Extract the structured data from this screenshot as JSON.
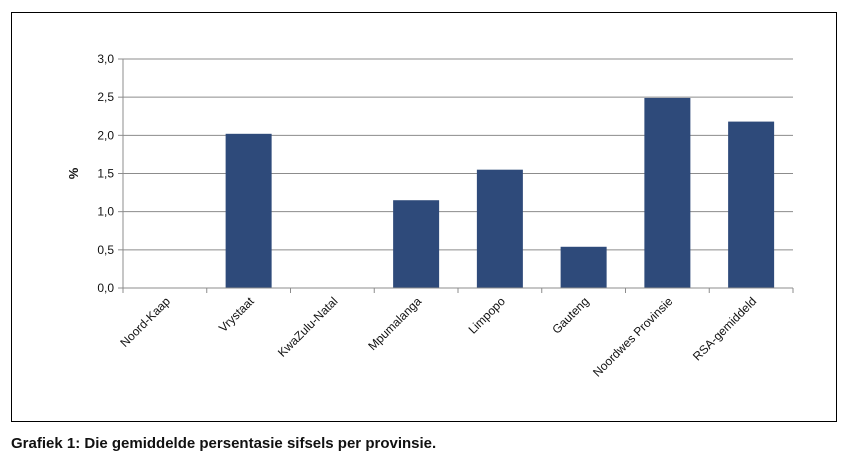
{
  "caption": "Grafiek 1: Die gemiddelde persentasie sifsels per provinsie.",
  "colors": {
    "bar": "#2e4a7a",
    "grid": "#8c8c8c",
    "axis": "#8c8c8c"
  },
  "chart_data": {
    "type": "bar",
    "categories": [
      "Noord-Kaap",
      "Vrystaat",
      "KwaZulu-Natal",
      "Mpumalanga",
      "Limpopo",
      "Gauteng",
      "Noordwes Provinsie",
      "RSA-gemiddeld"
    ],
    "values": [
      0,
      2.02,
      0,
      1.15,
      1.55,
      0.54,
      2.49,
      2.18
    ],
    "ylabel": "%",
    "ylim": [
      0,
      3.0
    ],
    "yticks": [
      "0,0",
      "0,5",
      "1,0",
      "1,5",
      "2,0",
      "2,5",
      "3,0"
    ],
    "grid": true
  }
}
